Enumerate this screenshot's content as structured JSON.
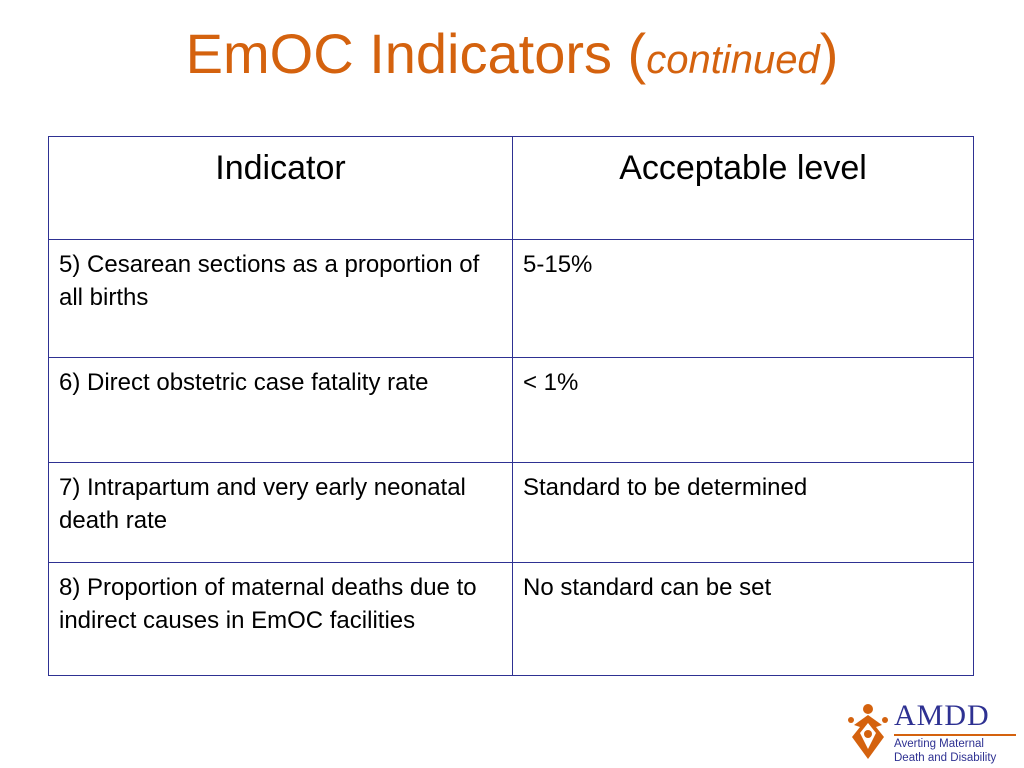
{
  "slide": {
    "title_main": "EmOC Indicators (",
    "title_italic": "continued",
    "title_close": ")"
  },
  "table": {
    "headers": [
      "Indicator",
      "Acceptable level"
    ],
    "rows": [
      {
        "indicator": "5) Cesarean sections as a proportion of all births",
        "level": "5-15%"
      },
      {
        "indicator": "6) Direct obstetric case fatality rate",
        "level": "< 1%"
      },
      {
        "indicator": "7) Intrapartum and very early neonatal death rate",
        "level": "Standard to be determined"
      },
      {
        "indicator": "8) Proportion of maternal deaths due to indirect causes in EmOC facilities",
        "level": "No standard can be set"
      }
    ]
  },
  "logo": {
    "name": "AMDD",
    "tagline_line1": "Averting Maternal",
    "tagline_line2": "Death and Disability",
    "icon": "amdd-figure-emblem"
  },
  "colors": {
    "title": "#d4620e",
    "table_border": "#2e3192",
    "logo_blue": "#2e3192",
    "logo_orange": "#d4620e"
  }
}
